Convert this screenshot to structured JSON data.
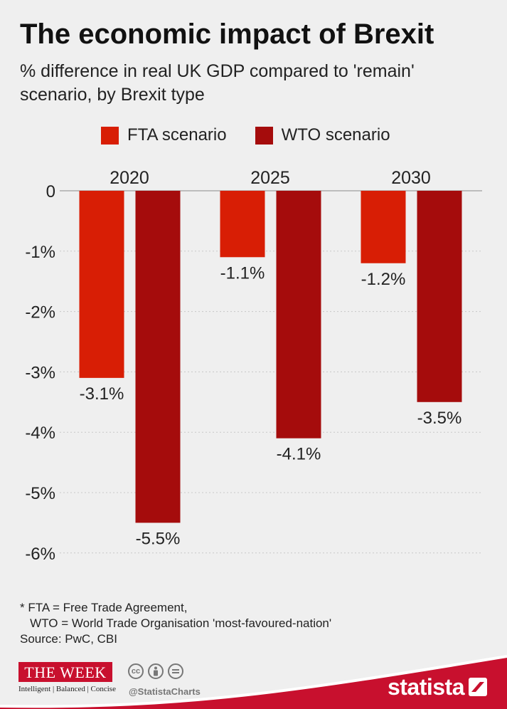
{
  "header": {
    "title": "The economic impact of Brexit",
    "subtitle": "% difference in real UK GDP compared to 'remain' scenario, by Brexit type"
  },
  "chart_data": {
    "type": "bar",
    "categories": [
      "2020",
      "2025",
      "2030"
    ],
    "series": [
      {
        "name": "FTA scenario",
        "color": "#d81e05",
        "values": [
          -3.1,
          -1.1,
          -1.2
        ],
        "labels": [
          "-3.1%",
          "-1.1%",
          "-1.2%"
        ]
      },
      {
        "name": "WTO scenario",
        "color": "#a50c0c",
        "values": [
          -5.5,
          -4.1,
          -3.5
        ],
        "labels": [
          "-5.5%",
          "-4.1%",
          "-3.5%"
        ]
      }
    ],
    "y_ticks": [
      {
        "value": 0,
        "label": "0"
      },
      {
        "value": -1,
        "label": "-1%"
      },
      {
        "value": -2,
        "label": "-2%"
      },
      {
        "value": -3,
        "label": "-3%"
      },
      {
        "value": -4,
        "label": "-4%"
      },
      {
        "value": -5,
        "label": "-5%"
      },
      {
        "value": -6,
        "label": "-6%"
      }
    ],
    "ylim": [
      -6,
      0
    ],
    "grid": true,
    "legend_position": "top"
  },
  "footnote": {
    "line1": "* FTA = Free Trade Agreement,",
    "line2": "   WTO = World Trade Organisation 'most-favoured-nation'",
    "line3": "Source: PwC, CBI"
  },
  "branding": {
    "week_logo": "THE WEEK",
    "week_tagline": "Intelligent | Balanced | Concise",
    "cc_icons": [
      "creative-commons-icon",
      "attribution-icon",
      "no-derivatives-icon"
    ],
    "handle": "@StatistaCharts",
    "statista": "statista",
    "band_color": "#c8102e"
  }
}
